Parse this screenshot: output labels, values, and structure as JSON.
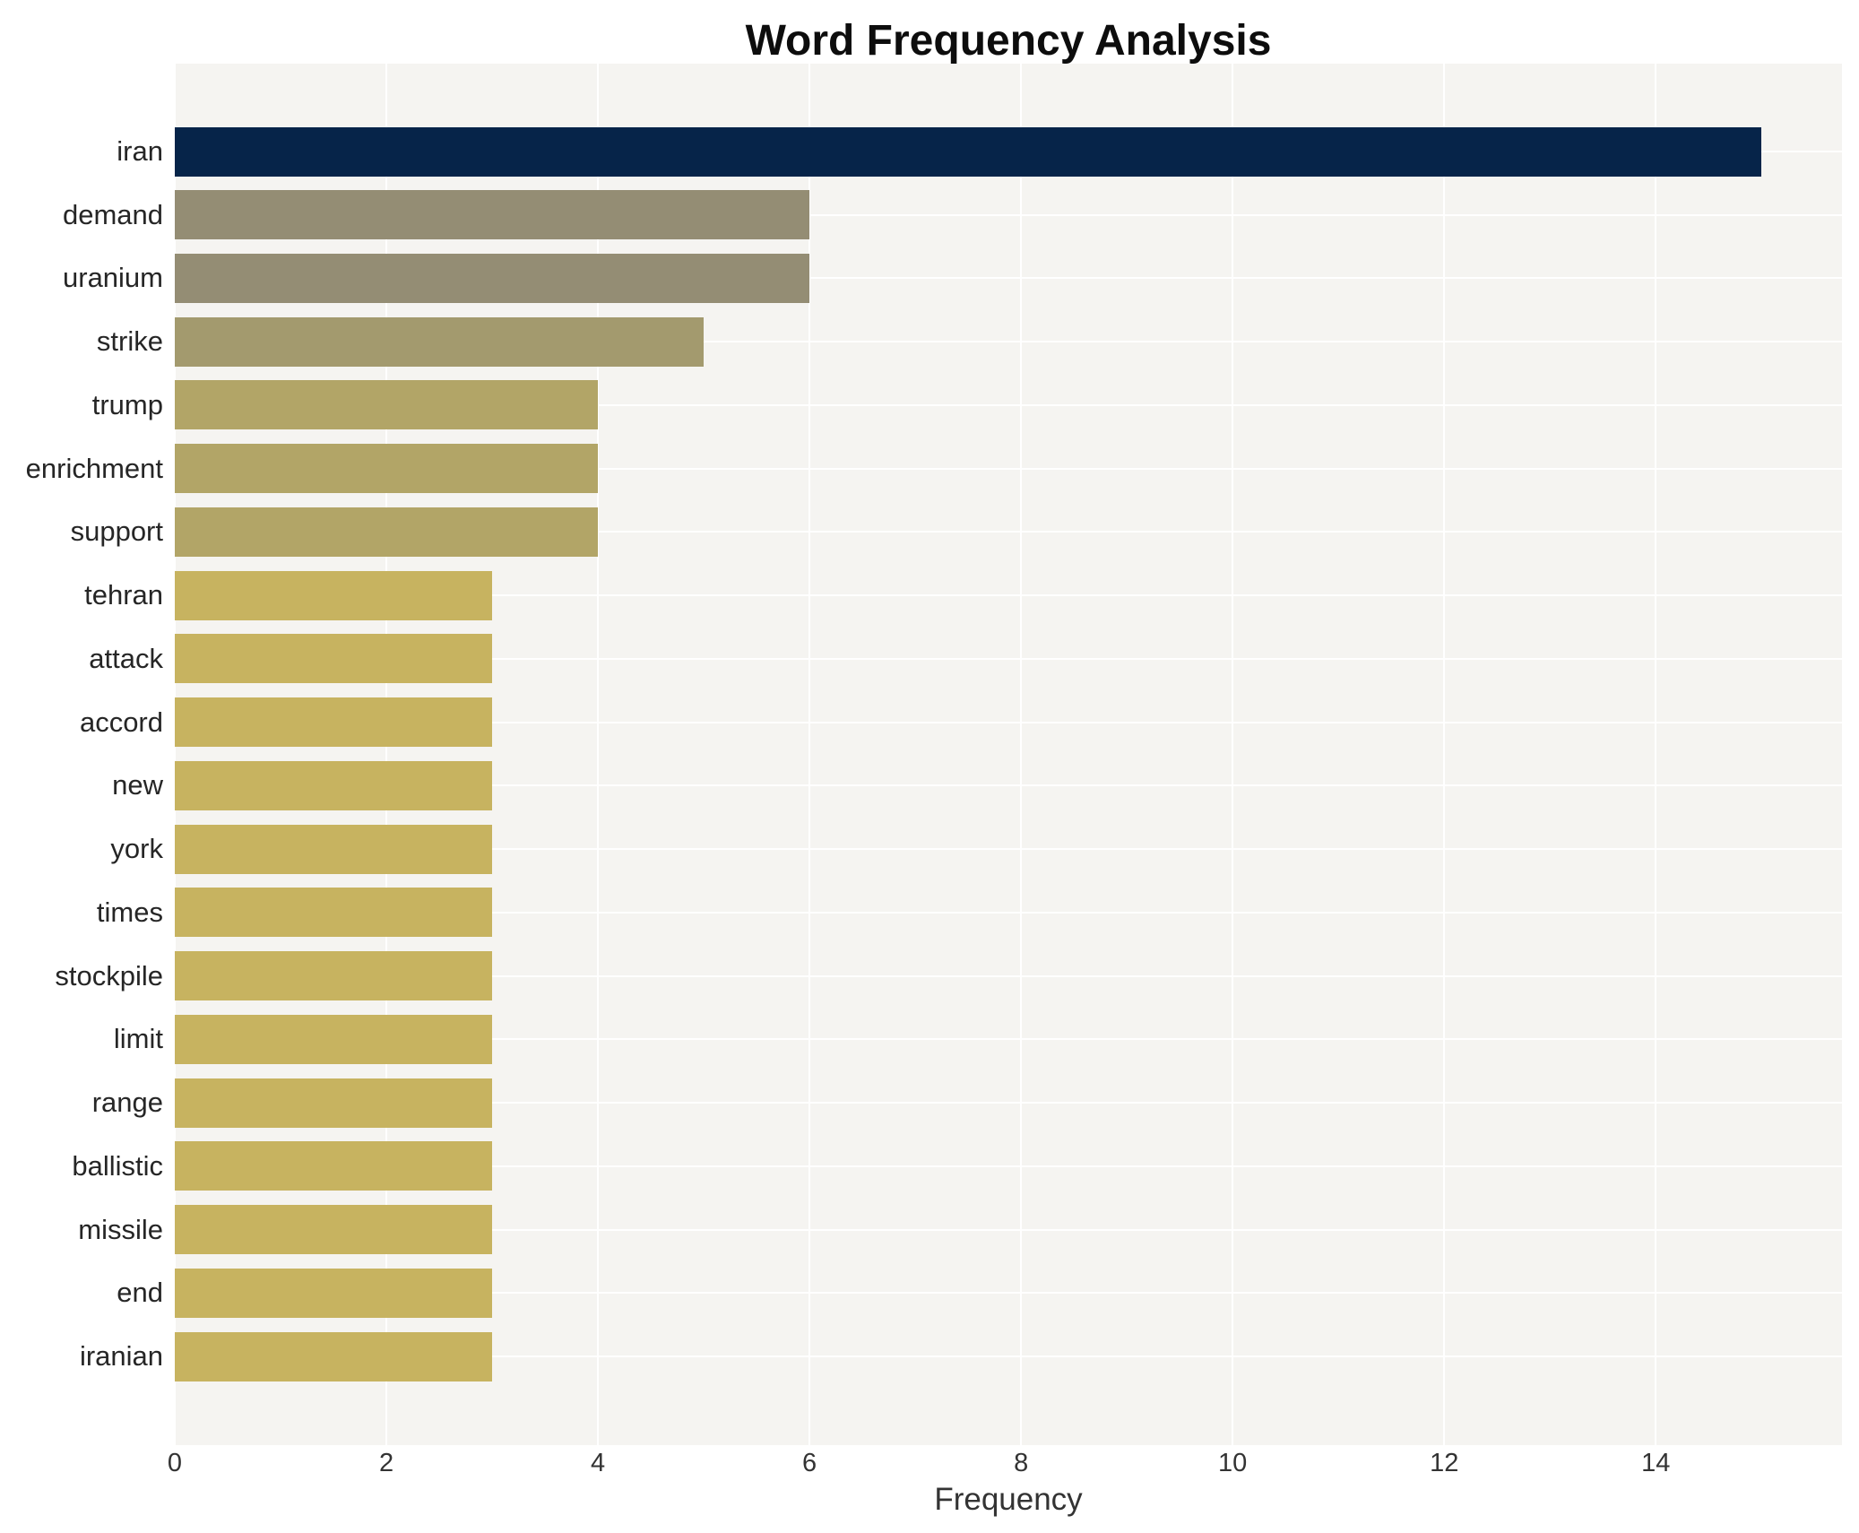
{
  "title": "Word Frequency Analysis",
  "xlabel": "Frequency",
  "chart_data": {
    "type": "bar",
    "orientation": "horizontal",
    "title": "Word Frequency Analysis",
    "xlabel": "Frequency",
    "ylabel": "",
    "categories": [
      "iran",
      "demand",
      "uranium",
      "strike",
      "trump",
      "enrichment",
      "support",
      "tehran",
      "attack",
      "accord",
      "new",
      "york",
      "times",
      "stockpile",
      "limit",
      "range",
      "ballistic",
      "missile",
      "end",
      "iranian"
    ],
    "values": [
      15,
      6,
      6,
      5,
      4,
      4,
      4,
      3,
      3,
      3,
      3,
      3,
      3,
      3,
      3,
      3,
      3,
      3,
      3,
      3
    ],
    "bar_colors": [
      "#062449",
      "#948d74",
      "#948d74",
      "#a39a6e",
      "#b2a567",
      "#b2a567",
      "#b2a567",
      "#c7b360",
      "#c7b360",
      "#c7b360",
      "#c7b360",
      "#c7b360",
      "#c7b360",
      "#c7b360",
      "#c7b360",
      "#c7b360",
      "#c7b360",
      "#c7b360",
      "#c7b360",
      "#c7b360"
    ],
    "colors_by_value": {
      "15": "#062449",
      "6": "#948d74",
      "5": "#a39a6e",
      "4": "#b2a567",
      "3": "#c7b360"
    },
    "x_ticks": [
      0,
      2,
      4,
      6,
      8,
      10,
      12,
      14
    ],
    "xlim": [
      0,
      15.76
    ],
    "grid": true,
    "legend": false,
    "plot_background": "#f5f4f1",
    "gridline_color": "#ffffff",
    "text_color": "#262626"
  }
}
